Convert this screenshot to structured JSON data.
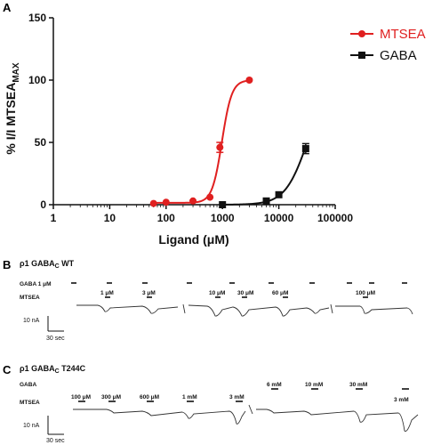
{
  "chart_data": [
    {
      "type": "line",
      "panel_label": "A",
      "xlabel": "Ligand (μM)",
      "ylabel_main": "% I/I MTSEA",
      "ylabel_sub": "MAX",
      "x_scale": "log",
      "xlim": [
        1,
        100000
      ],
      "ylim": [
        0,
        150
      ],
      "x_ticks": [
        1,
        10,
        100,
        1000,
        10000,
        100000
      ],
      "x_tick_labels": [
        "1",
        "10",
        "100",
        "1000",
        "10000",
        "100000"
      ],
      "y_ticks": [
        0,
        50,
        100,
        150
      ],
      "y_tick_labels": [
        "0",
        "50",
        "100",
        "150"
      ],
      "grid": false,
      "legend_position": "top-right",
      "series": [
        {
          "name": "MTSEA",
          "color": "#e02020",
          "marker": "circle",
          "x": [
            60,
            100,
            300,
            600,
            900,
            3000
          ],
          "y": [
            1,
            2,
            3,
            6,
            46,
            100
          ],
          "error": [
            0,
            0,
            0,
            0,
            4,
            0
          ],
          "fit": {
            "bottom": 1.5,
            "top": 100,
            "ec50": 980,
            "hill": 5
          }
        },
        {
          "name": "GABA",
          "color": "#111111",
          "marker": "square",
          "x": [
            1000,
            6000,
            10000,
            30000
          ],
          "y": [
            0,
            3,
            8,
            45
          ],
          "error": [
            0,
            0,
            0,
            4
          ],
          "fit": {
            "bottom": 0,
            "top": 100,
            "ec50": 32000,
            "hill": 2.2
          }
        }
      ]
    },
    {
      "type": "trace",
      "panel_label": "B",
      "title": "ρ1 GABA",
      "title_sub": "C",
      "title_suffix": " WT",
      "rows": [
        {
          "label": "GABA 1 μM",
          "pulses": [
            80,
            120,
            160,
            210,
            258,
            302,
            348,
            390,
            415,
            452
          ]
        },
        {
          "label": "MTSEA",
          "pulses": [
            118,
            165,
            242,
            272,
            318,
            408
          ]
        }
      ],
      "annotations": [
        "1 μM",
        "3 μM",
        "10 μM",
        "30 μM",
        "60 μM",
        "100 μM"
      ],
      "scale_bar": {
        "y": "10 nA",
        "x": "30 sec"
      }
    },
    {
      "type": "trace",
      "panel_label": "C",
      "title": "ρ1 GABA",
      "title_sub": "C",
      "title_suffix": " T244C",
      "rows": [
        {
          "label": "GABA",
          "pulses": [
            305,
            350,
            400,
            452
          ]
        },
        {
          "label": "MTSEA",
          "pulses": [
            88,
            122,
            165,
            210,
            265
          ]
        }
      ],
      "annotations_mtsea": [
        "100 μM",
        "300 μM",
        "600 μM",
        "1 mM",
        "3 mM",
        "3 mM"
      ],
      "annotations_gaba": [
        "6 mM",
        "10 mM",
        "30 mM"
      ],
      "scale_bar": {
        "y": "10 nA",
        "x": "30 sec"
      }
    }
  ]
}
